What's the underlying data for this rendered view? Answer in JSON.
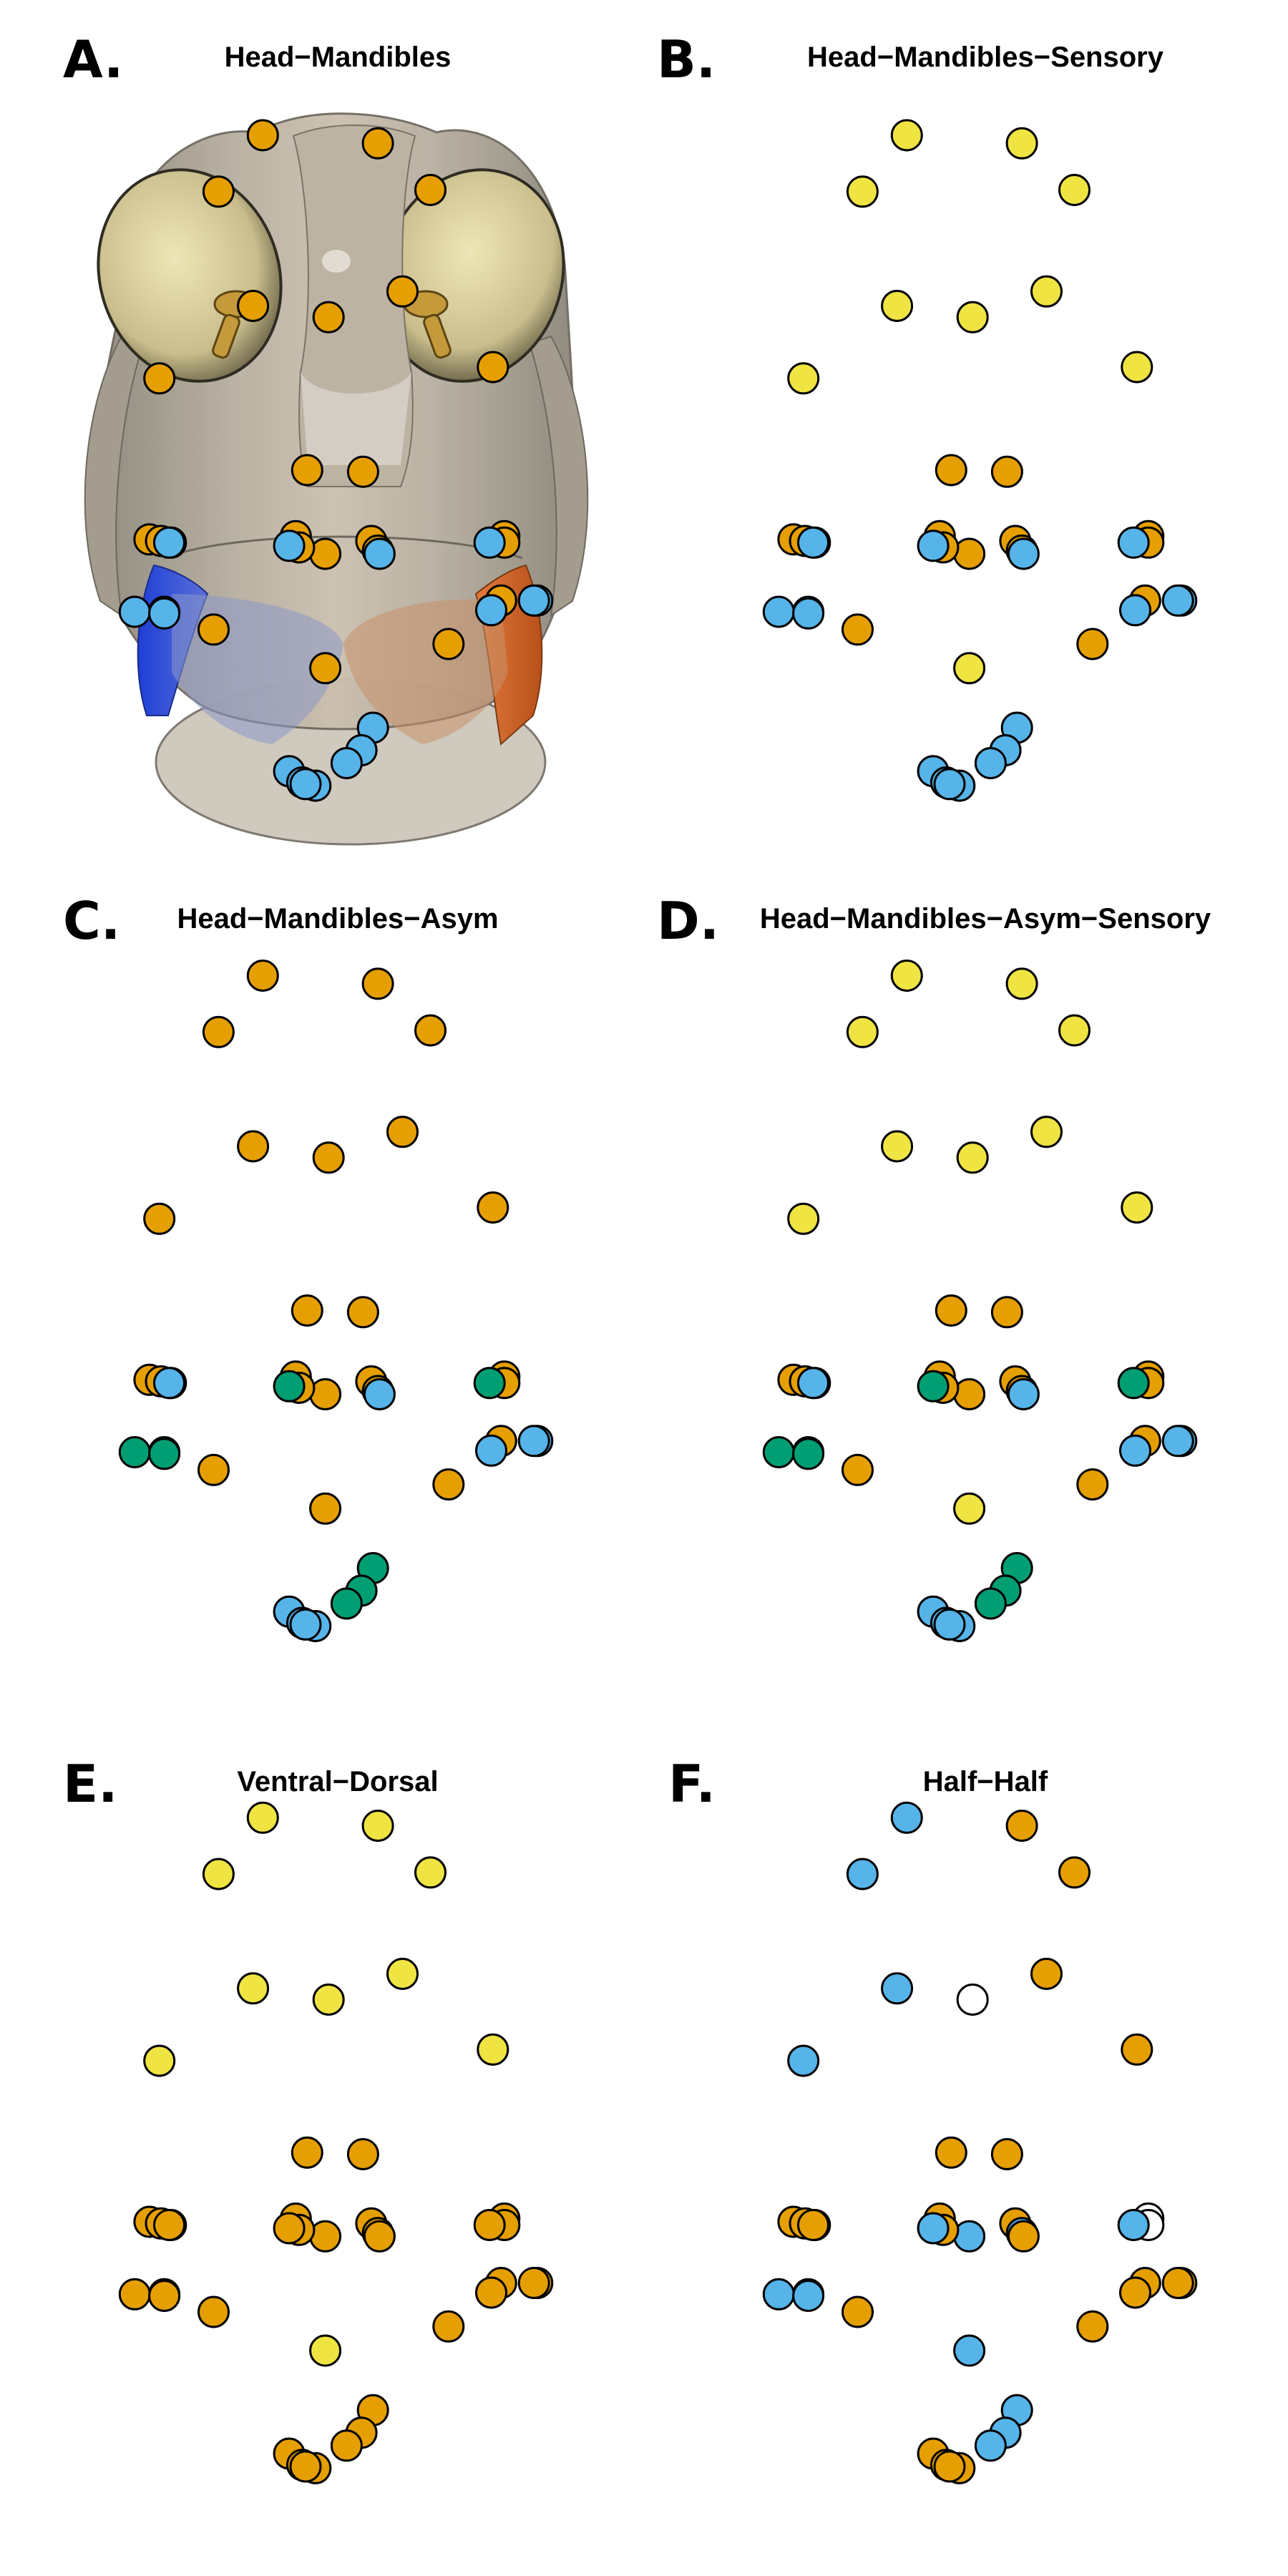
{
  "figure": {
    "panels": [
      {
        "id": "A",
        "label": "A.",
        "title": "Head−Mandibles",
        "has_image": true
      },
      {
        "id": "B",
        "label": "B.",
        "title": "Head−Mandibles−Sensory"
      },
      {
        "id": "C",
        "label": "C.",
        "title": "Head−Mandibles−Asym"
      },
      {
        "id": "D",
        "label": "D.",
        "title": "Head−Mandibles−Asym−Sensory"
      },
      {
        "id": "E",
        "label": "E.",
        "title": "Ventral−Dorsal"
      },
      {
        "id": "F",
        "label": "F.",
        "title": "Half−Half"
      }
    ],
    "colors": {
      "orange": "#E69F00",
      "blue": "#56B4E9",
      "yellow": "#F0E442",
      "green": "#009E73",
      "white": "#FFFFFF",
      "outline": "#000000"
    },
    "landmark_count": 42,
    "landmark_colors_by_panel": {
      "A": [
        "orange",
        "orange",
        "orange",
        "orange",
        "orange",
        "orange",
        "orange",
        "orange",
        "orange",
        "orange",
        "orange",
        "orange",
        "orange",
        "orange",
        "orange",
        "orange",
        "orange",
        "orange",
        "orange",
        "orange",
        "orange",
        "orange",
        "orange",
        "orange",
        "orange",
        "blue",
        "blue",
        "blue",
        "blue",
        "blue",
        "blue",
        "blue",
        "blue",
        "blue",
        "blue",
        "blue",
        "blue",
        "blue",
        "blue",
        "blue",
        "blue",
        "blue"
      ],
      "B": [
        "yellow",
        "yellow",
        "yellow",
        "yellow",
        "yellow",
        "yellow",
        "yellow",
        "yellow",
        "yellow",
        "yellow",
        "orange",
        "orange",
        "orange",
        "orange",
        "orange",
        "orange",
        "orange",
        "orange",
        "orange",
        "orange",
        "orange",
        "orange",
        "orange",
        "orange",
        "orange",
        "blue",
        "blue",
        "blue",
        "blue",
        "blue",
        "blue",
        "blue",
        "blue",
        "blue",
        "blue",
        "blue",
        "blue",
        "blue",
        "blue",
        "blue",
        "blue",
        "blue"
      ],
      "C": [
        "orange",
        "orange",
        "orange",
        "orange",
        "orange",
        "orange",
        "orange",
        "orange",
        "orange",
        "orange",
        "orange",
        "orange",
        "orange",
        "orange",
        "orange",
        "orange",
        "orange",
        "orange",
        "orange",
        "orange",
        "orange",
        "orange",
        "orange",
        "orange",
        "orange",
        "green",
        "green",
        "green",
        "green",
        "green",
        "green",
        "green",
        "green",
        "blue",
        "blue",
        "blue",
        "blue",
        "blue",
        "blue",
        "blue",
        "blue",
        "blue"
      ],
      "D": [
        "yellow",
        "yellow",
        "yellow",
        "yellow",
        "yellow",
        "yellow",
        "yellow",
        "yellow",
        "yellow",
        "yellow",
        "orange",
        "orange",
        "orange",
        "orange",
        "orange",
        "orange",
        "orange",
        "orange",
        "orange",
        "orange",
        "orange",
        "orange",
        "orange",
        "orange",
        "orange",
        "green",
        "green",
        "green",
        "green",
        "green",
        "green",
        "green",
        "green",
        "blue",
        "blue",
        "blue",
        "blue",
        "blue",
        "blue",
        "blue",
        "blue",
        "blue"
      ],
      "E": [
        "yellow",
        "yellow",
        "yellow",
        "yellow",
        "yellow",
        "yellow",
        "yellow",
        "yellow",
        "yellow",
        "yellow",
        "orange",
        "orange",
        "orange",
        "orange",
        "orange",
        "orange",
        "orange",
        "orange",
        "orange",
        "orange",
        "orange",
        "orange",
        "orange",
        "orange",
        "orange",
        "orange",
        "orange",
        "orange",
        "orange",
        "orange",
        "orange",
        "orange",
        "orange",
        "orange",
        "orange",
        "orange",
        "orange",
        "orange",
        "orange",
        "orange",
        "orange",
        "orange"
      ],
      "F": [
        "blue",
        "orange",
        "blue",
        "orange",
        "blue",
        "white",
        "orange",
        "blue",
        "orange",
        "blue",
        "orange",
        "orange",
        "orange",
        "white",
        "orange",
        "orange",
        "blue",
        "orange",
        "orange",
        "white",
        "orange",
        "orange",
        "blue",
        "orange",
        "orange",
        "blue",
        "blue",
        "blue",
        "blue",
        "blue",
        "blue",
        "blue",
        "blue",
        "orange",
        "orange",
        "orange",
        "orange",
        "orange",
        "orange",
        "orange",
        "orange",
        "orange"
      ]
    }
  }
}
